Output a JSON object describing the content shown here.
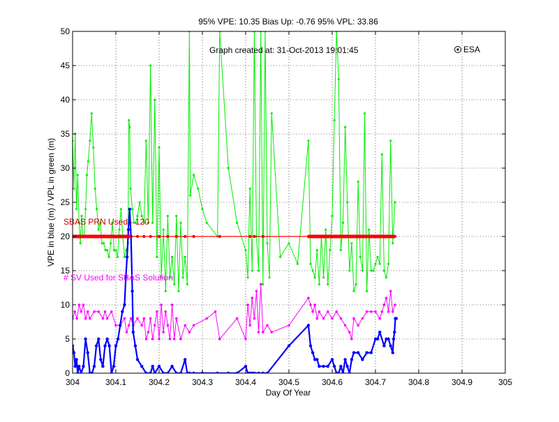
{
  "chart_data": {
    "type": "line",
    "title": "95% VPE: 10.35  Bias Up: -0.76  95% VPL: 33.86",
    "xlabel": "Day Of Year",
    "ylabel": "VPE in blue (m) / VPL in green (m)",
    "xlim": [
      304,
      305
    ],
    "ylim": [
      0,
      50
    ],
    "xticks": [
      "304",
      "304.1",
      "304.2",
      "304.3",
      "304.4",
      "304.5",
      "304.6",
      "304.7",
      "304.8",
      "304.9",
      "305"
    ],
    "yticks": [
      "0",
      "5",
      "10",
      "15",
      "20",
      "25",
      "30",
      "35",
      "40",
      "45",
      "50"
    ],
    "grid": true,
    "annotations": {
      "created": "Graph created at: 31-Oct-2013 19:01:45",
      "logo": "ESA",
      "prn_label": "SBAS PRN Used - 120",
      "sv_label": "# SV Used for SBAS Solution"
    },
    "colors": {
      "vpl": "#00ee00",
      "vpe": "#0000ff",
      "sv": "#ff00ff",
      "prn": "#ff0000",
      "prn_label": "#cc0000",
      "sv_label": "#ff00ff"
    },
    "series": [
      {
        "key": "vpl",
        "x": [
          304.0,
          304.003,
          304.006,
          304.009,
          304.012,
          304.015,
          304.018,
          304.021,
          304.024,
          304.027,
          304.03,
          304.033,
          304.036,
          304.04,
          304.044,
          304.048,
          304.052,
          304.056,
          304.06,
          304.064,
          304.068,
          304.072,
          304.076,
          304.08,
          304.084,
          304.088,
          304.092,
          304.096,
          304.1,
          304.104,
          304.108,
          304.112,
          304.116,
          304.12,
          304.124,
          304.128,
          304.13,
          304.132,
          304.134,
          304.138,
          304.142,
          304.146,
          304.15,
          304.155,
          304.16,
          304.165,
          304.17,
          304.175,
          304.18,
          304.185,
          304.19,
          304.195,
          304.2,
          304.205,
          304.21,
          304.215,
          304.22,
          304.225,
          304.23,
          304.235,
          304.24,
          304.245,
          304.25,
          304.255,
          304.26,
          304.265,
          304.27,
          304.272,
          304.28,
          304.29,
          304.3,
          304.31,
          304.335,
          304.34,
          304.36,
          304.38,
          304.4,
          304.405,
          304.41,
          304.415,
          304.42,
          304.425,
          304.43,
          304.435,
          304.44,
          304.445,
          304.45,
          304.455,
          304.46,
          304.48,
          304.5,
          304.52,
          304.545,
          304.55,
          304.555,
          304.56,
          304.565,
          304.57,
          304.575,
          304.58,
          304.585,
          304.59,
          304.595,
          304.6,
          304.605,
          304.61,
          304.615,
          304.62,
          304.625,
          304.63,
          304.635,
          304.64,
          304.645,
          304.65,
          304.655,
          304.66,
          304.665,
          304.67,
          304.675,
          304.68,
          304.685,
          304.69,
          304.695,
          304.7,
          304.705,
          304.71,
          304.715,
          304.72,
          304.725,
          304.73,
          304.735,
          304.74,
          304.745
        ],
        "y": [
          34,
          27,
          35,
          24,
          29,
          22,
          19,
          23,
          20,
          20,
          24,
          29,
          31,
          34,
          38,
          33,
          27,
          24,
          21,
          22,
          19,
          19,
          18,
          18,
          17,
          19,
          22,
          18,
          18,
          17,
          21,
          24,
          20,
          17,
          18,
          19,
          37,
          36,
          27,
          24,
          22,
          22,
          23,
          25,
          23,
          22,
          34,
          22,
          45,
          22,
          40,
          17,
          33,
          14,
          21,
          12,
          23,
          14,
          17,
          13,
          23,
          12,
          22,
          14,
          17,
          13,
          50,
          26,
          29,
          27,
          24,
          22,
          20,
          50,
          30,
          22,
          18,
          14,
          27,
          15,
          50,
          20,
          15,
          50,
          13,
          50,
          19,
          14,
          38,
          17,
          19,
          16,
          34,
          16,
          15,
          14,
          18,
          13,
          20,
          14,
          21,
          13,
          18,
          23,
          37,
          50,
          43,
          18,
          22,
          36,
          25,
          15,
          19,
          12,
          13,
          28,
          17,
          15,
          38,
          12,
          21,
          15,
          15,
          16,
          17,
          16,
          32,
          15,
          14,
          16,
          34,
          19,
          25
        ]
      },
      {
        "key": "vpe",
        "x": [
          304.0,
          304.003,
          304.006,
          304.009,
          304.012,
          304.015,
          304.02,
          304.025,
          304.03,
          304.035,
          304.04,
          304.045,
          304.05,
          304.055,
          304.06,
          304.065,
          304.07,
          304.075,
          304.08,
          304.085,
          304.09,
          304.095,
          304.1,
          304.105,
          304.11,
          304.115,
          304.12,
          304.123,
          304.126,
          304.129,
          304.132,
          304.135,
          304.138,
          304.14,
          304.145,
          304.15,
          304.16,
          304.17,
          304.18,
          304.185,
          304.19,
          304.2,
          304.21,
          304.22,
          304.23,
          304.24,
          304.25,
          304.26,
          304.265,
          304.27,
          304.28,
          304.3,
          304.335,
          304.36,
          304.38,
          304.4,
          304.405,
          304.41,
          304.415,
          304.42,
          304.43,
          304.44,
          304.45,
          304.5,
          304.545,
          304.55,
          304.555,
          304.56,
          304.565,
          304.57,
          304.58,
          304.59,
          304.6,
          304.605,
          304.61,
          304.615,
          304.62,
          304.625,
          304.63,
          304.635,
          304.64,
          304.645,
          304.65,
          304.66,
          304.67,
          304.68,
          304.69,
          304.7,
          304.705,
          304.71,
          304.72,
          304.725,
          304.73,
          304.735,
          304.74,
          304.742,
          304.744,
          304.746,
          304.748
        ],
        "y": [
          4,
          3,
          1,
          2,
          0,
          1,
          0,
          1,
          5,
          3,
          0,
          0,
          1,
          4,
          5,
          2,
          1,
          4,
          5,
          4,
          0,
          1,
          4,
          5,
          7,
          9,
          10,
          14,
          17,
          21,
          24,
          20,
          12,
          6,
          4,
          2,
          1,
          0,
          0,
          1,
          0,
          1,
          0,
          0,
          1,
          0,
          0,
          2,
          0,
          0,
          0,
          0,
          0,
          0,
          0,
          1,
          0,
          0,
          0,
          0,
          0,
          0,
          0,
          4,
          7,
          4,
          3,
          2,
          2,
          1,
          1,
          1,
          2,
          1,
          0,
          0,
          1,
          0,
          2,
          1,
          0,
          2,
          3,
          3,
          2,
          3,
          3,
          5,
          5,
          6,
          4,
          5,
          5,
          4,
          3,
          5,
          6,
          8,
          8
        ]
      },
      {
        "key": "sv",
        "x": [
          304.0,
          304.005,
          304.01,
          304.015,
          304.02,
          304.025,
          304.03,
          304.035,
          304.04,
          304.05,
          304.06,
          304.07,
          304.075,
          304.08,
          304.09,
          304.1,
          304.11,
          304.12,
          304.125,
          304.13,
          304.135,
          304.14,
          304.15,
          304.16,
          304.165,
          304.17,
          304.175,
          304.18,
          304.185,
          304.19,
          304.195,
          304.2,
          304.205,
          304.21,
          304.215,
          304.22,
          304.225,
          304.23,
          304.235,
          304.24,
          304.25,
          304.26,
          304.27,
          304.28,
          304.31,
          304.33,
          304.34,
          304.38,
          304.4,
          304.405,
          304.41,
          304.415,
          304.42,
          304.425,
          304.43,
          304.435,
          304.44,
          304.45,
          304.46,
          304.5,
          304.545,
          304.55,
          304.555,
          304.56,
          304.565,
          304.57,
          304.58,
          304.59,
          304.6,
          304.61,
          304.62,
          304.63,
          304.64,
          304.645,
          304.65,
          304.66,
          304.67,
          304.68,
          304.69,
          304.7,
          304.71,
          304.715,
          304.72,
          304.725,
          304.73,
          304.735,
          304.74,
          304.745
        ],
        "y": [
          8,
          9,
          8,
          10,
          9,
          10,
          8,
          9,
          8,
          9,
          9,
          8,
          9,
          8,
          9,
          7,
          7,
          8,
          6,
          7,
          8,
          7,
          8,
          7,
          8,
          5,
          6,
          8,
          5,
          7,
          9,
          5,
          10,
          6,
          9,
          7,
          5,
          10,
          5,
          8,
          5,
          7,
          6,
          7,
          8,
          9,
          5,
          8,
          5,
          10,
          7,
          11,
          8,
          12,
          6,
          13,
          6,
          7,
          6,
          7,
          11,
          10,
          9,
          10,
          8,
          9,
          8,
          9,
          8,
          9,
          8,
          7,
          6,
          5,
          8,
          7,
          8,
          9,
          9,
          9,
          8,
          9,
          10,
          11,
          9,
          12,
          9,
          10
        ]
      },
      {
        "key": "prn",
        "x": [
          304.0,
          304.005,
          304.01,
          304.015,
          304.02,
          304.025,
          304.03,
          304.035,
          304.04,
          304.045,
          304.05,
          304.055,
          304.06,
          304.065,
          304.07,
          304.075,
          304.08,
          304.085,
          304.09,
          304.095,
          304.1,
          304.105,
          304.11,
          304.115,
          304.12,
          304.125,
          304.13,
          304.135,
          304.15,
          304.165,
          304.18,
          304.2,
          304.22,
          304.24,
          304.26,
          304.28,
          304.34,
          304.41,
          304.42,
          304.44,
          304.545,
          304.55,
          304.555,
          304.56,
          304.565,
          304.57,
          304.575,
          304.58,
          304.585,
          304.59,
          304.595,
          304.6,
          304.605,
          304.61,
          304.615,
          304.62,
          304.625,
          304.63,
          304.635,
          304.64,
          304.645,
          304.65,
          304.655,
          304.66,
          304.665,
          304.67,
          304.675,
          304.68,
          304.685,
          304.69,
          304.695,
          304.7,
          304.705,
          304.71,
          304.715,
          304.72,
          304.725,
          304.73,
          304.735,
          304.74,
          304.745
        ],
        "y": [
          20,
          20,
          20,
          20,
          20,
          20,
          20,
          20,
          20,
          20,
          20,
          20,
          20,
          20,
          20,
          20,
          20,
          20,
          20,
          20,
          20,
          20,
          20,
          20,
          20,
          20,
          20,
          20,
          20,
          20,
          20,
          20,
          20,
          20,
          20,
          20,
          20,
          20,
          20,
          20,
          20,
          20,
          20,
          20,
          20,
          20,
          20,
          20,
          20,
          20,
          20,
          20,
          20,
          20,
          20,
          20,
          20,
          20,
          20,
          20,
          20,
          20,
          20,
          20,
          20,
          20,
          20,
          20,
          20,
          20,
          20,
          20,
          20,
          20,
          20,
          20,
          20,
          20,
          20,
          20,
          20
        ]
      }
    ]
  }
}
